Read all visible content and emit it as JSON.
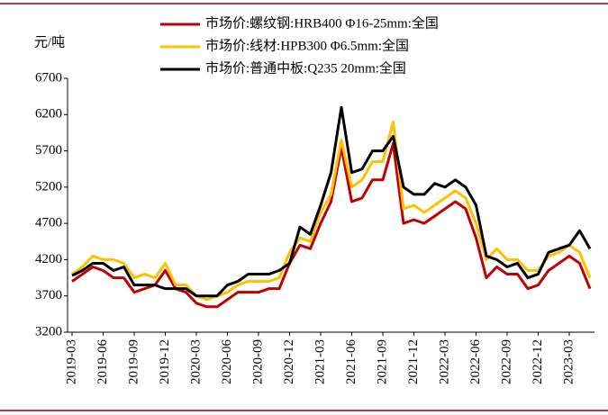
{
  "chart_data": {
    "type": "line",
    "y_unit": "元/吨",
    "categories": [
      "2019-03",
      null,
      null,
      "2019-06",
      null,
      null,
      "2019-09",
      null,
      null,
      "2019-12",
      null,
      null,
      "2020-03",
      null,
      null,
      "2020-06",
      null,
      null,
      "2020-09",
      null,
      null,
      "2020-12",
      null,
      null,
      "2021-03",
      null,
      null,
      "2021-06",
      null,
      null,
      "2021-09",
      null,
      null,
      "2021-12",
      null,
      null,
      "2022-03",
      null,
      null,
      "2022-06",
      null,
      null,
      "2022-09",
      null,
      null,
      "2022-12",
      null,
      null,
      "2023-03",
      null,
      null
    ],
    "series": [
      {
        "name": "市场价:螺纹钢:HRB400 Φ16-25mm:全国",
        "color": "#c00000",
        "values": [
          3900,
          4000,
          4100,
          4050,
          3950,
          3950,
          3750,
          3800,
          3850,
          4050,
          3800,
          3750,
          3600,
          3550,
          3550,
          3650,
          3750,
          3750,
          3750,
          3800,
          3800,
          4150,
          4400,
          4350,
          4700,
          5000,
          5750,
          5000,
          5050,
          5300,
          5300,
          5800,
          4700,
          4750,
          4700,
          4800,
          4900,
          5000,
          4900,
          4500,
          3950,
          4100,
          4000,
          4000,
          3800,
          3850,
          4050,
          4150,
          4250,
          4150,
          3800
        ]
      },
      {
        "name": "市场价:线材:HPB300 Φ6.5mm:全国",
        "color": "#ffc000",
        "values": [
          4000,
          4100,
          4250,
          4200,
          4200,
          4150,
          3950,
          4000,
          3950,
          4150,
          3850,
          3850,
          3700,
          3650,
          3700,
          3750,
          3850,
          3900,
          3900,
          3900,
          3950,
          4300,
          4500,
          4450,
          4850,
          5100,
          5850,
          5200,
          5300,
          5550,
          5550,
          6100,
          4900,
          4950,
          4850,
          4950,
          5050,
          5150,
          5050,
          4700,
          4200,
          4350,
          4200,
          4200,
          4050,
          4050,
          4250,
          4300,
          4400,
          4300,
          3950
        ]
      },
      {
        "name": "市场价:普通中板:Q235 20mm:全国",
        "color": "#000000",
        "values": [
          3980,
          4050,
          4150,
          4150,
          4050,
          4100,
          3850,
          3850,
          3850,
          3800,
          3800,
          3800,
          3700,
          3700,
          3700,
          3850,
          3900,
          4000,
          4000,
          4000,
          4050,
          4150,
          4650,
          4550,
          4950,
          5400,
          6300,
          5400,
          5450,
          5700,
          5700,
          5900,
          5200,
          5100,
          5100,
          5250,
          5200,
          5300,
          5200,
          4950,
          4250,
          4200,
          4100,
          4150,
          3950,
          4000,
          4300,
          4350,
          4400,
          4600,
          4350
        ]
      }
    ],
    "ylim": [
      3200,
      6700
    ],
    "yticks": [
      3200,
      3700,
      4200,
      4700,
      5200,
      5700,
      6200,
      6700
    ]
  }
}
